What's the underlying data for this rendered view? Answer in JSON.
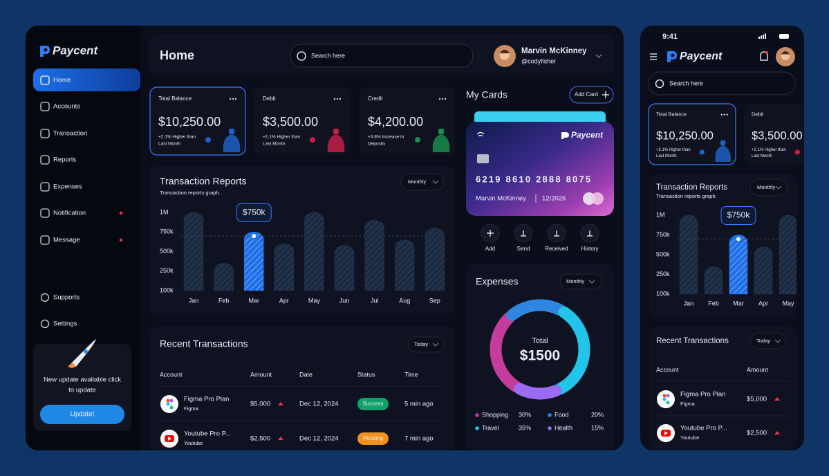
{
  "brand": "Paycent",
  "sidebar": {
    "nav": [
      "Home",
      "Accounts",
      "Transaction",
      "Reports",
      "Expenses",
      "Notification",
      "Message"
    ],
    "bottom": [
      "Supports",
      "Settings"
    ],
    "update": {
      "text": [
        "New update available click",
        "to update"
      ],
      "button": "Update!"
    }
  },
  "header": {
    "title": "Home",
    "search": "Search here",
    "user": {
      "name": "Marvin McKinney",
      "handle": "@codyfisher"
    }
  },
  "balances": [
    {
      "label": "Total Balance",
      "amount": "$10,250.00",
      "note": [
        "+2.1% Higher than",
        "Last Month"
      ]
    },
    {
      "label": "Debit",
      "amount": "$3,500.00",
      "note": [
        "+2.1% Higher than",
        "Last Month"
      ]
    },
    {
      "label": "Credit",
      "amount": "$4,200.00",
      "note": [
        "+3.8% Increase in",
        "Deposits"
      ]
    }
  ],
  "chart_data": [
    {
      "type": "bar",
      "title": "Transaction Reports",
      "subtitle": "Transaction reports graph.",
      "period": "Monthly",
      "categories": [
        "Jan",
        "Feb",
        "Mar",
        "Apr",
        "May",
        "Jun",
        "Jul",
        "Aug",
        "Sep"
      ],
      "values": [
        1000000,
        350000,
        750000,
        600000,
        1000000,
        580000,
        900000,
        650000,
        800000
      ],
      "value_labels": [
        null,
        null,
        "$750k",
        null,
        null,
        null,
        null,
        null,
        null
      ],
      "ylim": [
        100000,
        1000000
      ],
      "yticks": [
        {
          "value": 100000,
          "label": "100k"
        },
        {
          "value": 250000,
          "label": "250k"
        },
        {
          "value": 500000,
          "label": "500k"
        },
        {
          "value": 750000,
          "label": "750k"
        },
        {
          "value": 1000000,
          "label": "1M"
        }
      ],
      "color": "#1f3048",
      "highlight_color": "#1f6fe6"
    },
    {
      "type": "pie",
      "title": "Expenses",
      "period": "Monthly",
      "center_label": "Total",
      "total": "$1500",
      "categories": [
        "Shopping",
        "Food",
        "Travel",
        "Health"
      ],
      "values": [
        30,
        20,
        35,
        15
      ],
      "value_labels": [
        "30%",
        "20%",
        "35%",
        "15%"
      ],
      "colors": [
        "#c43c9c",
        "#2f86e0",
        "#22c4ea",
        "#9a6cf2"
      ]
    }
  ],
  "cards": {
    "title": "My Cards",
    "add": "Add Card",
    "card": {
      "brand": "Paycent",
      "number": "6219  8610  2888  8075",
      "holder": "Marvin McKinney",
      "expiry": "12/2026"
    },
    "actions": [
      "Add",
      "Send",
      "Received",
      "History"
    ]
  },
  "transactions": {
    "title": "Recent Transactions",
    "period": "Today",
    "columns": [
      "Account",
      "Amount",
      "Date",
      "Status",
      "Time"
    ],
    "rows": [
      {
        "name": "Figma Pro Plan",
        "sub": "Figma",
        "amount": "$5,000",
        "date": "Dec 12, 2024",
        "status": "Success",
        "time": "5 min ago"
      },
      {
        "name": "Youtube Pro P...",
        "sub": "Youtube",
        "amount": "$2,500",
        "date": "Dec 12, 2024",
        "status": "Pending",
        "time": "7 min ago"
      }
    ]
  },
  "mobile": {
    "time": "9:41",
    "search": "Search here"
  }
}
